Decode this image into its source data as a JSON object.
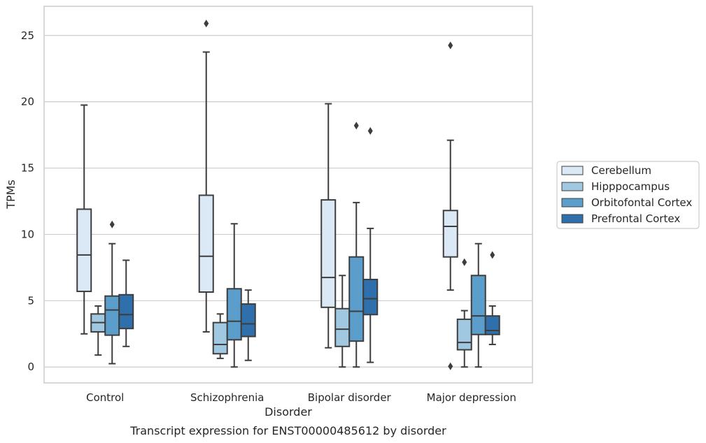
{
  "caption": "Transcript expression for ENST00000485612 by disorder",
  "chart_data": {
    "type": "box",
    "xlabel": "Disorder",
    "ylabel": "TPMs",
    "ylim": [
      -1.2,
      27.2
    ],
    "yticks": [
      0,
      5,
      10,
      15,
      20,
      25
    ],
    "grid": "horizontal",
    "legend_position": "right",
    "categories": [
      "Control",
      "Schizophrenia",
      "Bipolar disorder",
      "Major depression"
    ],
    "series": [
      {
        "name": "Cerebellum",
        "color": "#dbe9f6",
        "boxes": [
          {
            "q1": 5.7,
            "median": 8.45,
            "q3": 11.9,
            "whisker_low": 2.5,
            "whisker_high": 19.75,
            "outliers": []
          },
          {
            "q1": 5.65,
            "median": 8.35,
            "q3": 12.95,
            "whisker_low": 2.65,
            "whisker_high": 23.75,
            "outliers": [
              25.9
            ]
          },
          {
            "q1": 4.5,
            "median": 6.75,
            "q3": 12.6,
            "whisker_low": 1.45,
            "whisker_high": 19.85,
            "outliers": []
          },
          {
            "q1": 8.3,
            "median": 10.6,
            "q3": 11.8,
            "whisker_low": 5.8,
            "whisker_high": 17.1,
            "outliers": [
              0.05,
              24.25
            ]
          }
        ]
      },
      {
        "name": "Hipppocampus",
        "color": "#a0c8e0",
        "boxes": [
          {
            "q1": 2.65,
            "median": 3.35,
            "q3": 4.0,
            "whisker_low": 0.9,
            "whisker_high": 4.6,
            "outliers": []
          },
          {
            "q1": 1.0,
            "median": 1.7,
            "q3": 3.35,
            "whisker_low": 0.65,
            "whisker_high": 4.0,
            "outliers": []
          },
          {
            "q1": 1.55,
            "median": 2.85,
            "q3": 4.4,
            "whisker_low": 0.0,
            "whisker_high": 6.9,
            "outliers": []
          },
          {
            "q1": 1.3,
            "median": 1.85,
            "q3": 3.6,
            "whisker_low": 0.0,
            "whisker_high": 4.25,
            "outliers": [
              7.9
            ]
          }
        ]
      },
      {
        "name": "Orbitofontal Cortex",
        "color": "#5c9ecb",
        "boxes": [
          {
            "q1": 2.4,
            "median": 4.3,
            "q3": 5.35,
            "whisker_low": 0.25,
            "whisker_high": 9.3,
            "outliers": [
              10.75
            ]
          },
          {
            "q1": 2.05,
            "median": 3.45,
            "q3": 5.9,
            "whisker_low": 0.0,
            "whisker_high": 10.8,
            "outliers": []
          },
          {
            "q1": 1.95,
            "median": 4.2,
            "q3": 8.3,
            "whisker_low": 0.0,
            "whisker_high": 12.4,
            "outliers": [
              18.2
            ]
          },
          {
            "q1": 2.45,
            "median": 3.85,
            "q3": 6.9,
            "whisker_low": 0.0,
            "whisker_high": 9.3,
            "outliers": []
          }
        ]
      },
      {
        "name": "Prefrontal Cortex",
        "color": "#2f6fac",
        "boxes": [
          {
            "q1": 2.9,
            "median": 3.95,
            "q3": 5.45,
            "whisker_low": 1.55,
            "whisker_high": 8.05,
            "outliers": []
          },
          {
            "q1": 2.3,
            "median": 3.25,
            "q3": 4.75,
            "whisker_low": 0.5,
            "whisker_high": 5.8,
            "outliers": []
          },
          {
            "q1": 3.95,
            "median": 5.15,
            "q3": 6.6,
            "whisker_low": 0.35,
            "whisker_high": 10.45,
            "outliers": [
              17.8
            ]
          },
          {
            "q1": 2.45,
            "median": 2.75,
            "q3": 3.85,
            "whisker_low": 1.7,
            "whisker_high": 4.6,
            "outliers": [
              8.45
            ]
          }
        ]
      }
    ]
  }
}
